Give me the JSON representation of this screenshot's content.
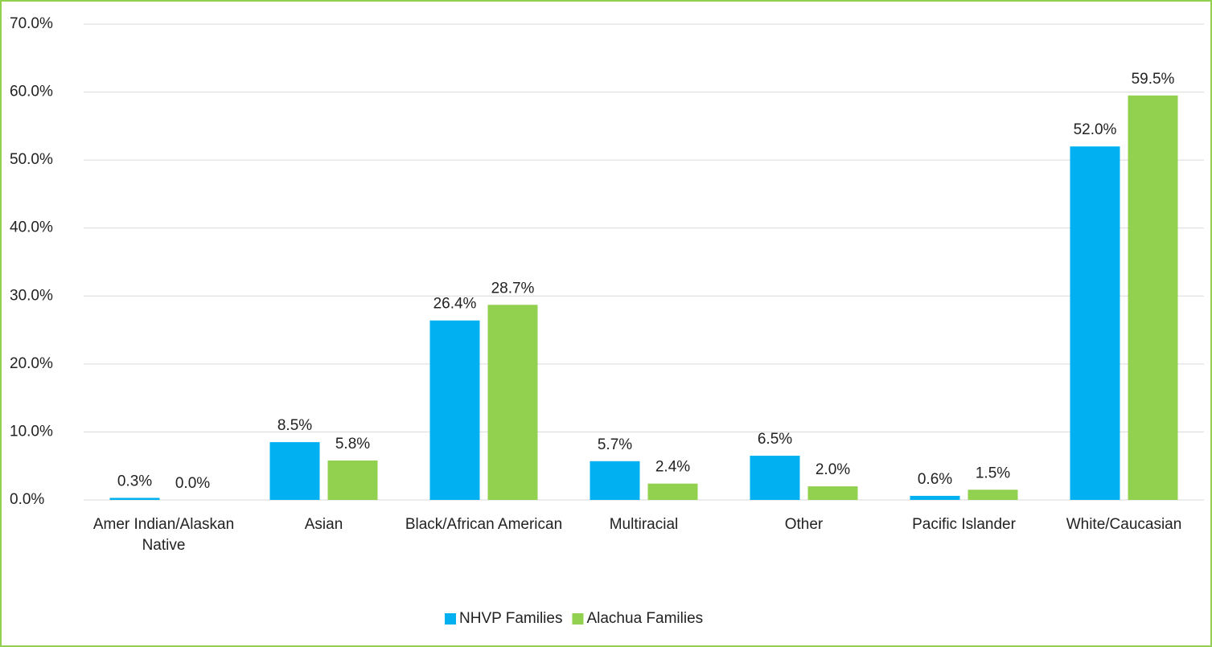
{
  "chart_data": {
    "type": "bar",
    "categories": [
      "Amer Indian/Alaskan Native",
      "Asian",
      "Black/African American",
      "Multiracial",
      "Other",
      "Pacific Islander",
      "White/Caucasian"
    ],
    "series": [
      {
        "name": "NHVP Families",
        "color": "#00b0f0",
        "values": [
          0.3,
          8.5,
          26.4,
          5.7,
          6.5,
          0.6,
          52.0
        ],
        "value_labels": [
          "0.3%",
          "8.5%",
          "26.4%",
          "5.7%",
          "6.5%",
          "0.6%",
          "52.0%"
        ]
      },
      {
        "name": "Alachua Families",
        "color": "#92d050",
        "values": [
          0.0,
          5.8,
          28.7,
          2.4,
          2.0,
          1.5,
          59.5
        ],
        "value_labels": [
          "0.0%",
          "5.8%",
          "28.7%",
          "2.4%",
          "2.0%",
          "1.5%",
          "59.5%"
        ]
      }
    ],
    "ylim": [
      0,
      70
    ],
    "yticks": [
      {
        "value": 0,
        "label": "0.0%"
      },
      {
        "value": 10,
        "label": "10.0%"
      },
      {
        "value": 20,
        "label": "20.0%"
      },
      {
        "value": 30,
        "label": "30.0%"
      },
      {
        "value": 40,
        "label": "40.0%"
      },
      {
        "value": 50,
        "label": "50.0%"
      },
      {
        "value": 60,
        "label": "60.0%"
      },
      {
        "value": 70,
        "label": "70.0%"
      }
    ],
    "grid": true,
    "legend": "bottom",
    "border_color": "#92d050"
  }
}
